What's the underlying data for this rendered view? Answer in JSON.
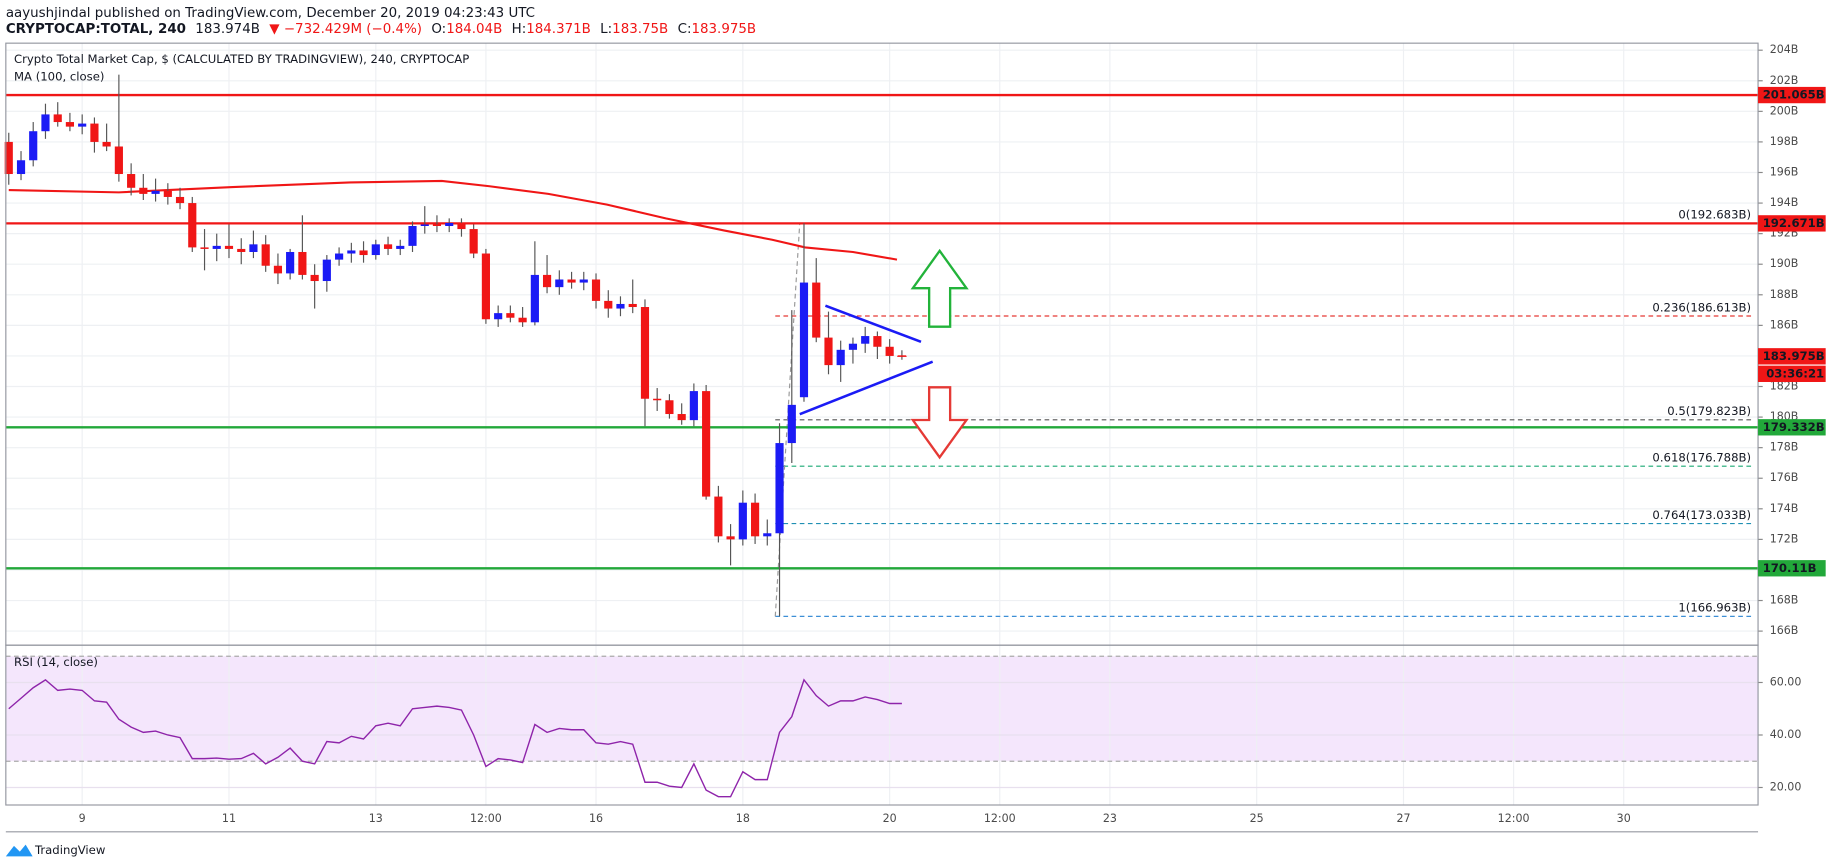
{
  "header": {
    "byline": "aayushjindal published on TradingView.com, December 20, 2019 04:23:43 UTC",
    "symbol": "CRYPTOCAP:TOTAL, 240",
    "price": "183.974B",
    "change": "▼ −732.429M (−0.4%)",
    "ohlc": [
      [
        "O:",
        "184.04B"
      ],
      [
        "H:",
        "184.371B"
      ],
      [
        "L:",
        "183.75B"
      ],
      [
        "C:",
        "183.975B"
      ]
    ]
  },
  "footer": {
    "logo": "TradingView"
  },
  "chart_data": {
    "type": "candlestick",
    "title": "Crypto Total Market Cap, $ (CALCULATED BY TRADINGVIEW), 240, CRYPTOCAP",
    "up_color": "#1b1bf5",
    "down_color": "#f01616",
    "x": [
      8,
      8.167,
      8.333,
      8.5,
      8.667,
      8.833,
      9,
      9.167,
      9.333,
      9.5,
      9.667,
      9.833,
      10,
      10.167,
      10.333,
      10.5,
      10.667,
      10.833,
      11,
      11.167,
      11.333,
      11.5,
      11.667,
      11.833,
      12,
      12.167,
      12.333,
      12.5,
      12.667,
      12.833,
      13,
      13.167,
      13.333,
      13.5,
      13.667,
      13.833,
      14,
      14.167,
      14.333,
      14.5,
      14.667,
      14.833,
      15,
      15.167,
      15.333,
      15.5,
      15.667,
      15.833,
      16,
      16.167,
      16.333,
      16.5,
      16.667,
      16.833,
      17,
      17.167,
      17.333,
      17.5,
      17.667,
      17.833,
      18,
      18.167,
      18.333,
      18.5,
      18.667,
      18.833,
      19,
      19.167,
      19.333,
      19.5,
      19.667,
      19.833,
      20,
      20.167
    ],
    "open": [
      198.0,
      195.9,
      196.8,
      198.7,
      199.8,
      199.3,
      199.0,
      199.2,
      198.0,
      197.7,
      195.9,
      195.0,
      194.6,
      194.8,
      194.4,
      194.0,
      191.1,
      191.0,
      191.2,
      191.0,
      190.8,
      191.3,
      189.9,
      189.4,
      190.8,
      189.3,
      188.9,
      190.3,
      190.7,
      190.9,
      190.6,
      191.3,
      191.0,
      191.2,
      192.5,
      192.6,
      192.5,
      192.7,
      192.3,
      190.7,
      186.4,
      186.8,
      186.5,
      186.2,
      189.3,
      188.5,
      189.0,
      188.8,
      189.0,
      187.6,
      187.1,
      187.4,
      187.2,
      181.2,
      181.1,
      180.2,
      179.8,
      181.7,
      174.8,
      172.2,
      172.0,
      174.4,
      172.2,
      172.4,
      178.3,
      181.3,
      188.8,
      185.2,
      183.4,
      184.4,
      184.8,
      185.3,
      184.6,
      184.04
    ],
    "high": [
      198.6,
      197.4,
      199.3,
      200.5,
      200.6,
      199.9,
      199.8,
      199.6,
      199.2,
      202.4,
      196.6,
      195.9,
      195.6,
      195.3,
      195.0,
      194.4,
      192.3,
      192.0,
      192.6,
      191.7,
      192.2,
      191.9,
      190.7,
      191.0,
      193.2,
      190.0,
      190.6,
      191.1,
      191.4,
      191.5,
      191.6,
      191.8,
      191.6,
      192.8,
      193.8,
      193.2,
      193.0,
      193.0,
      192.6,
      191.0,
      187.3,
      187.3,
      187.2,
      191.5,
      190.6,
      189.6,
      189.5,
      189.5,
      189.4,
      188.3,
      187.9,
      189.0,
      187.7,
      181.9,
      181.5,
      180.9,
      182.2,
      182.1,
      175.5,
      173.0,
      175.2,
      175.0,
      173.3,
      179.6,
      187.0,
      192.683,
      190.4,
      186.9,
      185.0,
      185.2,
      185.9,
      185.6,
      185.1,
      184.371
    ],
    "low": [
      195.2,
      195.5,
      196.4,
      198.2,
      199.0,
      198.7,
      198.5,
      197.3,
      197.4,
      195.4,
      194.5,
      194.2,
      194.1,
      193.9,
      193.6,
      190.8,
      189.6,
      190.2,
      190.4,
      190.0,
      190.4,
      189.5,
      188.7,
      189.0,
      189.0,
      187.1,
      188.2,
      189.9,
      190.1,
      190.1,
      190.3,
      190.6,
      190.6,
      190.8,
      192.0,
      192.1,
      192.1,
      191.8,
      190.4,
      186.1,
      185.9,
      186.2,
      185.9,
      186.0,
      188.1,
      188.0,
      188.4,
      188.3,
      187.1,
      186.5,
      186.6,
      186.8,
      179.4,
      180.4,
      179.9,
      179.5,
      179.4,
      174.6,
      171.8,
      170.3,
      171.6,
      171.7,
      171.6,
      166.963,
      177.0,
      181.0,
      184.9,
      182.8,
      182.3,
      183.5,
      184.2,
      183.8,
      183.5,
      183.75
    ],
    "close": [
      195.9,
      196.8,
      198.7,
      199.8,
      199.3,
      199.0,
      199.2,
      198.0,
      197.7,
      195.9,
      195.0,
      194.6,
      194.8,
      194.4,
      194.0,
      191.1,
      191.0,
      191.2,
      191.0,
      190.8,
      191.3,
      189.9,
      189.4,
      190.8,
      189.3,
      188.9,
      190.3,
      190.7,
      190.9,
      190.6,
      191.3,
      191.0,
      191.2,
      192.5,
      192.6,
      192.5,
      192.7,
      192.3,
      190.7,
      186.4,
      186.8,
      186.5,
      186.2,
      189.3,
      188.5,
      189.0,
      188.8,
      189.0,
      187.6,
      187.1,
      187.4,
      187.2,
      181.2,
      181.1,
      180.2,
      179.8,
      181.7,
      174.8,
      172.2,
      172.0,
      174.4,
      172.2,
      172.4,
      178.3,
      180.8,
      188.8,
      185.2,
      183.4,
      184.4,
      184.8,
      185.3,
      184.6,
      184.0,
      183.975
    ],
    "xlim": [
      7.96,
      31.83
    ],
    "xticks": [
      9,
      11,
      13,
      {
        "value": 14.5,
        "label": "12:00"
      },
      16,
      18,
      20,
      {
        "value": 21.5,
        "label": "12:00"
      },
      23,
      25,
      27,
      {
        "value": 28.5,
        "label": "12:00"
      },
      30
    ],
    "ylim": [
      165.08,
      204.46
    ],
    "yticks": [
      {
        "value": 166,
        "label": "166B"
      },
      {
        "value": 168,
        "label": "168B"
      },
      {
        "value": 170,
        "label": "170B"
      },
      {
        "value": 172,
        "label": "172B"
      },
      {
        "value": 174,
        "label": "174B"
      },
      {
        "value": 176,
        "label": "176B"
      },
      {
        "value": 178,
        "label": "178B"
      },
      {
        "value": 180,
        "label": "180B"
      },
      {
        "value": 182,
        "label": "182B"
      },
      {
        "value": 184,
        "label": "184B"
      },
      {
        "value": 186,
        "label": "186B"
      },
      {
        "value": 188,
        "label": "188B"
      },
      {
        "value": 190,
        "label": "190B"
      },
      {
        "value": 192,
        "label": "192B"
      },
      {
        "value": 194,
        "label": "194B"
      },
      {
        "value": 196,
        "label": "196B"
      },
      {
        "value": 198,
        "label": "198B"
      },
      {
        "value": 200,
        "label": "200B"
      },
      {
        "value": 202,
        "label": "202B"
      },
      {
        "value": 204,
        "label": "204B"
      }
    ],
    "grid": true,
    "ma": {
      "name": "MA (100, close)",
      "color": "#f01616",
      "x": [
        8,
        9.5,
        11.05,
        12.65,
        13.9,
        14.55,
        15.35,
        16.15,
        16.95,
        17.75,
        18.4,
        18.85,
        19.5,
        20.1
      ],
      "values": [
        194.85,
        194.7,
        195.05,
        195.35,
        195.45,
        195.1,
        194.6,
        193.9,
        193.0,
        192.2,
        191.6,
        191.1,
        190.8,
        190.3
      ]
    },
    "levels": [
      {
        "value": 201.065,
        "label": "201.065B",
        "color": "#f01616"
      },
      {
        "value": 192.671,
        "label": "192.671B",
        "color": "#f01616"
      },
      {
        "value": 179.332,
        "label": "179.332B",
        "color": "#22a83a"
      },
      {
        "value": 170.11,
        "label": "170.11B",
        "color": "#22a83a"
      }
    ],
    "fib": [
      {
        "value": 192.683,
        "label": "0(192.683B)",
        "color": "#8a8a8a"
      },
      {
        "value": 186.613,
        "label": "0.236(186.613B)",
        "color": "#e53935"
      },
      {
        "value": 179.823,
        "label": "0.5(179.823B)",
        "color": "#555555"
      },
      {
        "value": 176.788,
        "label": "0.618(176.788B)",
        "color": "#19a974"
      },
      {
        "value": 173.033,
        "label": "0.764(173.033B)",
        "color": "#1f8fb3"
      },
      {
        "value": 166.963,
        "label": "1(166.963B)",
        "color": "#3d8fd6"
      }
    ],
    "last": {
      "value": 183.975,
      "label": "183.975B",
      "countdown": "03:36:21",
      "color": "#f01616"
    },
    "rsi": {
      "name": "RSI (14, close)",
      "color": "#8e24aa",
      "fill": "#f4e6fc",
      "band": [
        30,
        70
      ],
      "ylim": [
        13.33,
        74.22
      ],
      "yticks": [
        {
          "value": 20,
          "label": "20.00"
        },
        {
          "value": 40,
          "label": "40.00"
        },
        {
          "value": 60,
          "label": "60.00"
        }
      ],
      "values": [
        50,
        54,
        58,
        61,
        57,
        57.5,
        57,
        53,
        52.5,
        46,
        43,
        41,
        41.5,
        40,
        39,
        31,
        31,
        31.2,
        30.8,
        31,
        33,
        29,
        31.5,
        35,
        30,
        29,
        37.5,
        37,
        39.5,
        38.5,
        43.5,
        44.5,
        43.5,
        50,
        50.5,
        51,
        50.5,
        49.5,
        40,
        28,
        31,
        30.5,
        29.5,
        44,
        41,
        42.5,
        42,
        42,
        37,
        36.5,
        37.5,
        36.5,
        22,
        22,
        20.5,
        20,
        29,
        19,
        16.5,
        16.5,
        26,
        23,
        23,
        41,
        47,
        61,
        55,
        51,
        53,
        53,
        54.5,
        53.5,
        52,
        52
      ]
    }
  }
}
